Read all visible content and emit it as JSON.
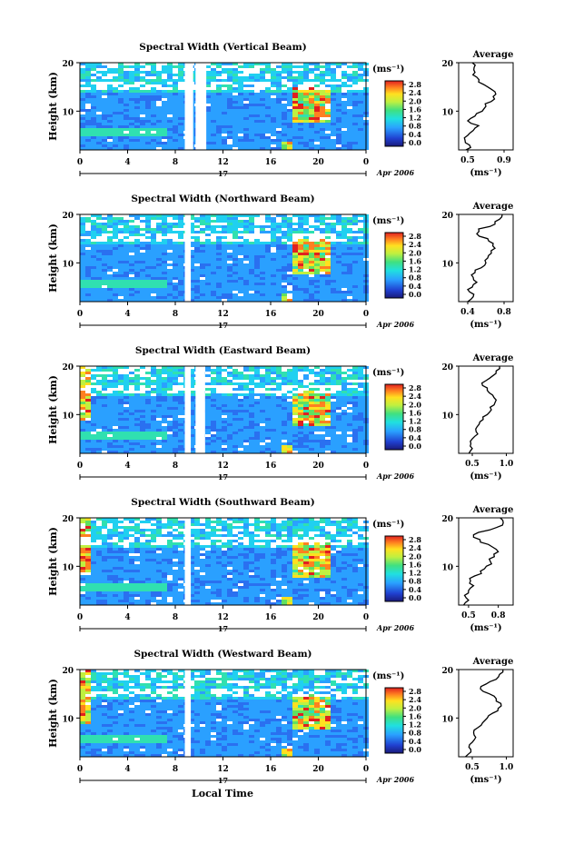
{
  "figure": {
    "x_axis_label": "Local Time",
    "date_label": "Apr 2006",
    "day_label": "17",
    "y_axis_label": "Height (km)",
    "colorbar_unit": "(ms⁻¹)",
    "colorbar_ticks": [
      "2.8",
      "2.4",
      "2.0",
      "1.6",
      "1.2",
      "0.8",
      "0.4",
      "0.0"
    ],
    "avg_title": "Average",
    "avg_xlabel": "(ms⁻¹)"
  },
  "chart_data": [
    {
      "type": "heatmap",
      "title": "Spectral Width (Vertical Beam)",
      "x_ticks": [
        "0",
        "4",
        "8",
        "12",
        "16",
        "20",
        "0"
      ],
      "y_ticks": [
        "20",
        "10"
      ],
      "xlim": [
        0,
        24
      ],
      "ylim": [
        2,
        20
      ],
      "colorbar_range": [
        0.0,
        2.8
      ],
      "gap_hours": [
        [
          8.8,
          9.5
        ],
        [
          9.7,
          10.6
        ]
      ],
      "average": {
        "type": "line",
        "x_ticks": [
          "0.5",
          "0.9"
        ],
        "xlim": [
          0.4,
          1.0
        ],
        "heights": [
          2,
          3,
          4,
          5,
          6,
          7,
          8,
          9,
          10,
          11,
          12,
          13,
          14,
          15,
          16,
          17,
          18,
          19,
          20
        ],
        "values": [
          0.48,
          0.52,
          0.47,
          0.5,
          0.56,
          0.62,
          0.5,
          0.58,
          0.66,
          0.7,
          0.76,
          0.78,
          0.8,
          0.72,
          0.62,
          0.6,
          0.58,
          0.57,
          0.55
        ]
      }
    },
    {
      "type": "heatmap",
      "title": "Spectral Width (Northward Beam)",
      "x_ticks": [
        "0",
        "4",
        "8",
        "12",
        "16",
        "20",
        "0"
      ],
      "y_ticks": [
        "20",
        "10"
      ],
      "xlim": [
        0,
        24
      ],
      "ylim": [
        2,
        20
      ],
      "colorbar_range": [
        0.0,
        2.8
      ],
      "gap_hours": [
        [
          8.8,
          9.3
        ]
      ],
      "average": {
        "type": "line",
        "x_ticks": [
          "0.4",
          "0.8"
        ],
        "xlim": [
          0.3,
          0.9
        ],
        "heights": [
          2,
          3,
          4,
          5,
          6,
          7,
          8,
          9,
          10,
          11,
          12,
          13,
          14,
          15,
          16,
          17,
          18,
          19,
          20
        ],
        "values": [
          0.4,
          0.46,
          0.42,
          0.45,
          0.5,
          0.46,
          0.48,
          0.55,
          0.6,
          0.62,
          0.66,
          0.7,
          0.68,
          0.62,
          0.5,
          0.52,
          0.7,
          0.75,
          0.78
        ]
      }
    },
    {
      "type": "heatmap",
      "title": "Spectral Width (Eastward Beam)",
      "x_ticks": [
        "0",
        "4",
        "8",
        "12",
        "16",
        "20",
        "0"
      ],
      "y_ticks": [
        "20",
        "10"
      ],
      "xlim": [
        0,
        24
      ],
      "ylim": [
        2,
        20
      ],
      "colorbar_range": [
        0.0,
        2.8
      ],
      "gap_hours": [
        [
          8.8,
          9.3
        ],
        [
          9.7,
          10.5
        ]
      ],
      "average": {
        "type": "line",
        "x_ticks": [
          "0.5",
          "1.0"
        ],
        "xlim": [
          0.3,
          1.1
        ],
        "heights": [
          2,
          3,
          4,
          5,
          6,
          7,
          8,
          9,
          10,
          11,
          12,
          13,
          14,
          15,
          16,
          17,
          18,
          19,
          20
        ],
        "values": [
          0.45,
          0.5,
          0.48,
          0.5,
          0.58,
          0.55,
          0.6,
          0.66,
          0.72,
          0.78,
          0.82,
          0.85,
          0.8,
          0.72,
          0.65,
          0.7,
          0.8,
          0.85,
          0.9
        ]
      }
    },
    {
      "type": "heatmap",
      "title": "Spectral Width (Southward Beam)",
      "x_ticks": [
        "0",
        "4",
        "8",
        "12",
        "16",
        "20",
        "0"
      ],
      "y_ticks": [
        "20",
        "10"
      ],
      "xlim": [
        0,
        24
      ],
      "ylim": [
        2,
        20
      ],
      "colorbar_range": [
        0.0,
        2.8
      ],
      "gap_hours": [
        [
          8.8,
          9.3
        ]
      ],
      "average": {
        "type": "line",
        "x_ticks": [
          "0.5",
          "0.8"
        ],
        "xlim": [
          0.4,
          0.95
        ],
        "heights": [
          2,
          3,
          4,
          5,
          6,
          7,
          8,
          9,
          10,
          11,
          12,
          13,
          14,
          15,
          16,
          17,
          18,
          19,
          20
        ],
        "values": [
          0.45,
          0.5,
          0.46,
          0.5,
          0.55,
          0.52,
          0.56,
          0.62,
          0.68,
          0.72,
          0.76,
          0.8,
          0.74,
          0.62,
          0.55,
          0.6,
          0.78,
          0.85,
          0.82
        ]
      }
    },
    {
      "type": "heatmap",
      "title": "Spectral Width (Westward Beam)",
      "x_ticks": [
        "0",
        "4",
        "8",
        "12",
        "16",
        "20",
        "0"
      ],
      "y_ticks": [
        "20",
        "10"
      ],
      "xlim": [
        0,
        24
      ],
      "ylim": [
        2,
        20
      ],
      "colorbar_range": [
        0.0,
        2.8
      ],
      "gap_hours": [
        [
          8.8,
          9.3
        ]
      ],
      "average": {
        "type": "line",
        "x_ticks": [
          "0.5",
          "1.0"
        ],
        "xlim": [
          0.3,
          1.1
        ],
        "heights": [
          2,
          3,
          4,
          5,
          6,
          7,
          8,
          9,
          10,
          11,
          12,
          13,
          14,
          15,
          16,
          17,
          18,
          19,
          20
        ],
        "values": [
          0.4,
          0.48,
          0.45,
          0.5,
          0.55,
          0.52,
          0.58,
          0.65,
          0.72,
          0.8,
          0.88,
          0.92,
          0.85,
          0.75,
          0.62,
          0.7,
          0.85,
          0.9,
          0.95
        ]
      }
    }
  ]
}
